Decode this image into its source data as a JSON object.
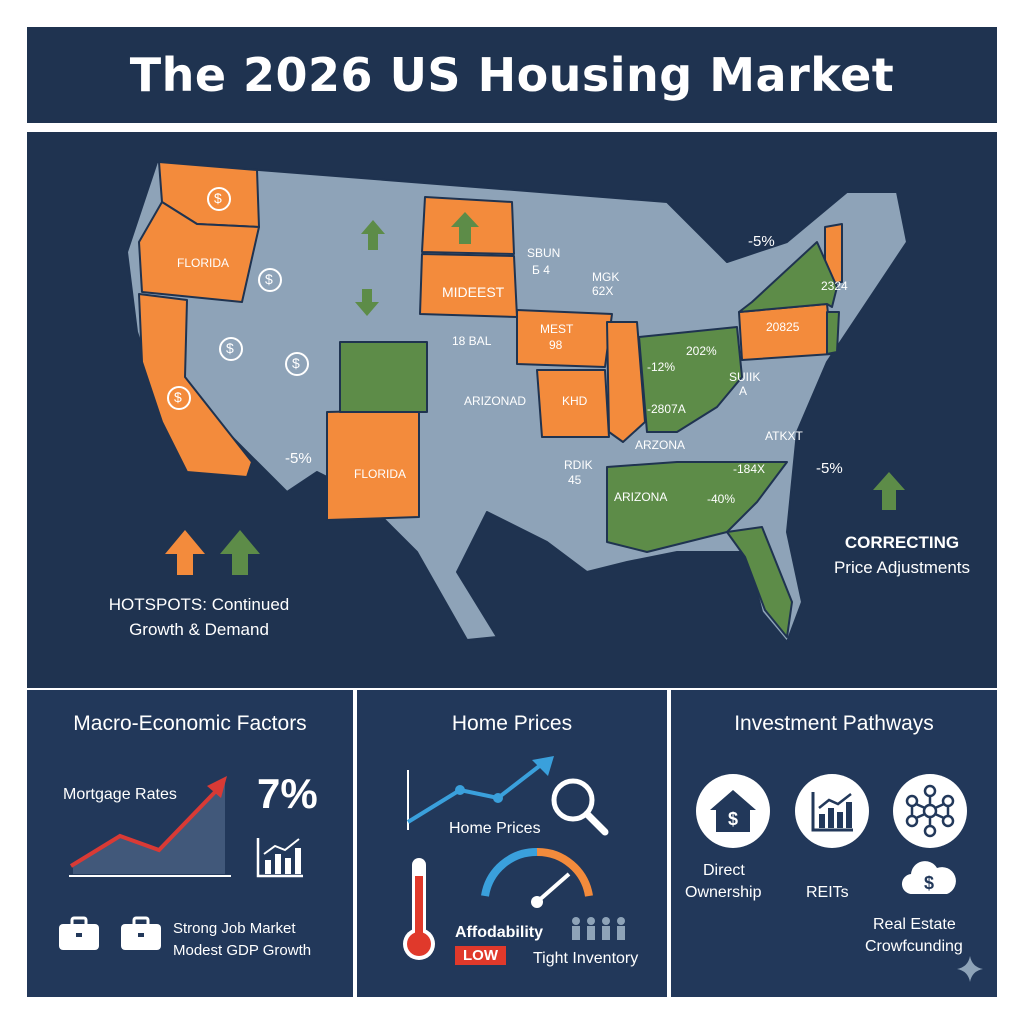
{
  "title": "The 2026 US Housing Market",
  "colors": {
    "hotspot": "#f38b3c",
    "green": "#5d8c48",
    "neutral": "#8ea3b8",
    "panel": "#1f3350",
    "card": "#22385a",
    "accent_blue": "#3aa0dc",
    "alert_red": "#e0392b"
  },
  "map": {
    "labels": [
      "FLORIDA",
      "MIDEEST",
      "SBUN",
      "Б 4",
      "MGK",
      "62X",
      "18 ВAL",
      "MEST",
      "98",
      "ARIZONAD",
      "KHD",
      "FLORIDA",
      "RDIK",
      "45",
      "ARZONA",
      "ARIZONA",
      "-40%",
      "-184X",
      "ATKXT",
      "SUIIK",
      "A",
      "-12%",
      "-2807A",
      "202%",
      "2324",
      "20825"
    ],
    "percents": [
      "-5%",
      "-5%",
      "-5%"
    ],
    "icons": [
      "dollar-icon",
      "up-arrow-icon",
      "down-arrow-icon"
    ]
  },
  "legend": {
    "hotspots_line1": "HOTSPOTS: Continued",
    "hotspots_line2": "Growth & Demand",
    "correcting_line1": "CORRECTING",
    "correcting_line2": "Price Adjustments"
  },
  "macro": {
    "title": "Macro-Economic Factors",
    "mortgage_label": "Mortgage Rates",
    "rate": "7%",
    "job_market": "Strong Job Market",
    "gdp": "Modest GDP Growth",
    "icons": [
      "briefcase-icon",
      "briefcase-icon",
      "bar-chart-icon"
    ]
  },
  "prices": {
    "title": "Home Prices",
    "chart_label": "Home Prices",
    "affordability": "Affodability",
    "low": "LOW",
    "inventory": "Tight Inventory",
    "icons": [
      "magnifier-icon",
      "thermometer-icon",
      "gauge-icon",
      "people-icon"
    ]
  },
  "invest": {
    "title": "Investment Pathways",
    "direct_line1": "Direct",
    "direct_line2": "Ownership",
    "reits": "REITs",
    "crowd_line1": "Real Estate",
    "crowd_line2": "Crowfcunding",
    "icons": [
      "house-dollar-icon",
      "bar-chart-icon",
      "network-icon",
      "cloud-dollar-icon"
    ]
  }
}
